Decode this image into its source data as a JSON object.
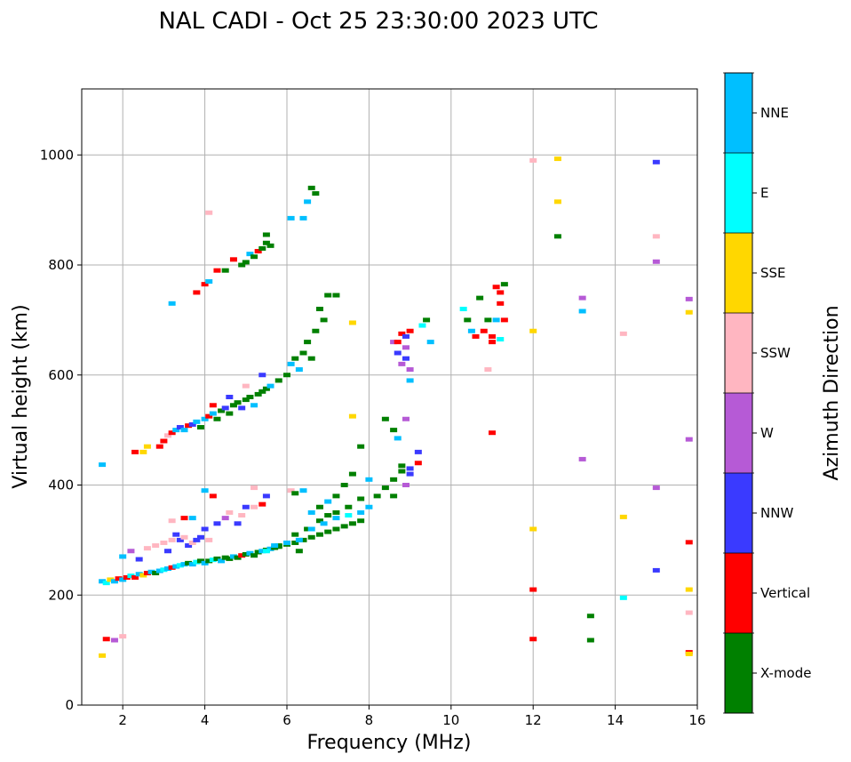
{
  "chart_data": {
    "type": "scatter",
    "title": "NAL CADI - Oct 25 23:30:00 2023 UTC",
    "xlabel": "Frequency (MHz)",
    "ylabel": "Virtual height (km)",
    "xlim": [
      1,
      16
    ],
    "ylim": [
      0,
      1120
    ],
    "xticks": [
      2,
      4,
      6,
      8,
      10,
      12,
      14,
      16
    ],
    "yticks": [
      0,
      200,
      400,
      600,
      800,
      1000
    ],
    "grid": true,
    "colorbar": {
      "label": "Azimuth Direction",
      "categories": [
        "X-mode",
        "Vertical",
        "NNW",
        "W",
        "SSW",
        "SSE",
        "E",
        "NNE"
      ],
      "colors": [
        "#008000",
        "#ff0000",
        "#3a3aff",
        "#b65ad6",
        "#ffb6c1",
        "#ffd700",
        "#00ffff",
        "#00bfff"
      ]
    },
    "points_format": "[frequency_MHz, virtual_height_km, category_index]",
    "points": [
      [
        1.5,
        225,
        7
      ],
      [
        1.6,
        222,
        6
      ],
      [
        1.7,
        228,
        5
      ],
      [
        1.8,
        225,
        7
      ],
      [
        1.9,
        230,
        1
      ],
      [
        2.0,
        228,
        7
      ],
      [
        2.1,
        232,
        1
      ],
      [
        2.2,
        235,
        6
      ],
      [
        2.3,
        232,
        1
      ],
      [
        2.4,
        238,
        7
      ],
      [
        2.5,
        236,
        5
      ],
      [
        2.6,
        240,
        1
      ],
      [
        2.7,
        242,
        7
      ],
      [
        2.8,
        240,
        0
      ],
      [
        2.9,
        244,
        7
      ],
      [
        3.0,
        246,
        6
      ],
      [
        3.1,
        248,
        7
      ],
      [
        3.2,
        250,
        1
      ],
      [
        3.3,
        252,
        7
      ],
      [
        3.4,
        254,
        6
      ],
      [
        3.5,
        256,
        7
      ],
      [
        3.6,
        258,
        0
      ],
      [
        3.7,
        256,
        7
      ],
      [
        3.8,
        260,
        6
      ],
      [
        3.9,
        262,
        0
      ],
      [
        4.0,
        258,
        7
      ],
      [
        4.1,
        262,
        0
      ],
      [
        4.2,
        264,
        6
      ],
      [
        4.3,
        266,
        0
      ],
      [
        4.4,
        262,
        7
      ],
      [
        4.5,
        268,
        0
      ],
      [
        4.6,
        266,
        0
      ],
      [
        4.7,
        270,
        7
      ],
      [
        4.8,
        268,
        0
      ],
      [
        4.9,
        272,
        1
      ],
      [
        5.0,
        274,
        0
      ],
      [
        5.1,
        276,
        7
      ],
      [
        5.2,
        272,
        0
      ],
      [
        5.3,
        278,
        0
      ],
      [
        5.4,
        280,
        7
      ],
      [
        5.5,
        282,
        0
      ],
      [
        5.6,
        284,
        7
      ],
      [
        5.7,
        286,
        0
      ],
      [
        5.8,
        288,
        0
      ],
      [
        2.0,
        270,
        7
      ],
      [
        2.2,
        280,
        3
      ],
      [
        2.4,
        265,
        2
      ],
      [
        2.6,
        285,
        4
      ],
      [
        2.8,
        290,
        4
      ],
      [
        3.0,
        295,
        4
      ],
      [
        3.1,
        280,
        2
      ],
      [
        3.2,
        300,
        4
      ],
      [
        3.3,
        310,
        2
      ],
      [
        3.4,
        300,
        2
      ],
      [
        3.5,
        305,
        4
      ],
      [
        3.6,
        290,
        2
      ],
      [
        3.7,
        295,
        4
      ],
      [
        3.8,
        300,
        2
      ],
      [
        3.9,
        305,
        2
      ],
      [
        4.0,
        320,
        2
      ],
      [
        4.1,
        300,
        4
      ],
      [
        4.3,
        330,
        2
      ],
      [
        4.5,
        340,
        3
      ],
      [
        4.6,
        350,
        4
      ],
      [
        4.8,
        330,
        2
      ],
      [
        4.9,
        345,
        4
      ],
      [
        5.0,
        360,
        2
      ],
      [
        5.2,
        360,
        4
      ],
      [
        5.4,
        365,
        1
      ],
      [
        5.5,
        380,
        2
      ],
      [
        3.2,
        335,
        4
      ],
      [
        3.5,
        340,
        1
      ],
      [
        3.7,
        340,
        7
      ],
      [
        4.0,
        390,
        7
      ],
      [
        4.2,
        380,
        1
      ],
      [
        5.2,
        395,
        4
      ],
      [
        6.1,
        390,
        4
      ],
      [
        5.8,
        290,
        0
      ],
      [
        6.0,
        292,
        0
      ],
      [
        6.2,
        295,
        0
      ],
      [
        6.3,
        280,
        0
      ],
      [
        6.4,
        300,
        0
      ],
      [
        6.6,
        305,
        0
      ],
      [
        6.8,
        310,
        0
      ],
      [
        7.0,
        315,
        0
      ],
      [
        7.2,
        320,
        0
      ],
      [
        7.4,
        325,
        0
      ],
      [
        7.6,
        330,
        0
      ],
      [
        7.8,
        335,
        0
      ],
      [
        6.2,
        310,
        0
      ],
      [
        6.5,
        320,
        0
      ],
      [
        6.8,
        335,
        0
      ],
      [
        7.0,
        345,
        0
      ],
      [
        7.2,
        350,
        0
      ],
      [
        7.5,
        360,
        0
      ],
      [
        7.8,
        375,
        0
      ],
      [
        8.0,
        360,
        7
      ],
      [
        8.2,
        380,
        0
      ],
      [
        8.4,
        395,
        0
      ],
      [
        8.6,
        410,
        0
      ],
      [
        8.8,
        425,
        0
      ],
      [
        9.0,
        430,
        2
      ],
      [
        9.0,
        420,
        2
      ],
      [
        8.9,
        400,
        3
      ],
      [
        8.6,
        380,
        0
      ],
      [
        8.8,
        435,
        0
      ],
      [
        9.2,
        440,
        1
      ],
      [
        9.2,
        460,
        2
      ],
      [
        8.7,
        485,
        7
      ],
      [
        8.6,
        500,
        0
      ],
      [
        8.9,
        520,
        3
      ],
      [
        8.4,
        520,
        0
      ],
      [
        7.8,
        470,
        0
      ],
      [
        7.6,
        420,
        0
      ],
      [
        7.4,
        400,
        0
      ],
      [
        7.2,
        380,
        0
      ],
      [
        7.0,
        370,
        7
      ],
      [
        6.8,
        360,
        0
      ],
      [
        6.6,
        350,
        7
      ],
      [
        6.4,
        390,
        7
      ],
      [
        6.2,
        385,
        0
      ],
      [
        8.0,
        410,
        7
      ],
      [
        7.8,
        350,
        7
      ],
      [
        7.5,
        345,
        6
      ],
      [
        7.2,
        340,
        7
      ],
      [
        6.9,
        330,
        7
      ],
      [
        6.6,
        320,
        7
      ],
      [
        6.3,
        300,
        7
      ],
      [
        6.0,
        295,
        7
      ],
      [
        5.7,
        290,
        7
      ],
      [
        5.5,
        280,
        6
      ],
      [
        3.0,
        480,
        1
      ],
      [
        3.1,
        490,
        4
      ],
      [
        3.2,
        495,
        1
      ],
      [
        3.3,
        500,
        7
      ],
      [
        3.4,
        505,
        2
      ],
      [
        3.5,
        500,
        7
      ],
      [
        3.6,
        508,
        1
      ],
      [
        3.7,
        510,
        2
      ],
      [
        3.8,
        515,
        7
      ],
      [
        3.9,
        505,
        0
      ],
      [
        4.0,
        520,
        7
      ],
      [
        4.1,
        525,
        1
      ],
      [
        4.2,
        530,
        7
      ],
      [
        4.3,
        520,
        0
      ],
      [
        4.4,
        535,
        0
      ],
      [
        4.5,
        540,
        2
      ],
      [
        4.6,
        530,
        0
      ],
      [
        4.7,
        545,
        0
      ],
      [
        4.8,
        550,
        0
      ],
      [
        4.9,
        540,
        2
      ],
      [
        5.0,
        555,
        0
      ],
      [
        5.1,
        560,
        0
      ],
      [
        5.2,
        545,
        7
      ],
      [
        5.3,
        565,
        0
      ],
      [
        5.4,
        570,
        0
      ],
      [
        5.5,
        575,
        0
      ],
      [
        5.6,
        580,
        7
      ],
      [
        5.8,
        590,
        0
      ],
      [
        6.0,
        600,
        0
      ],
      [
        6.1,
        620,
        7
      ],
      [
        6.2,
        630,
        0
      ],
      [
        6.3,
        610,
        7
      ],
      [
        6.4,
        640,
        0
      ],
      [
        6.5,
        660,
        0
      ],
      [
        6.6,
        630,
        0
      ],
      [
        6.7,
        680,
        0
      ],
      [
        6.9,
        700,
        0
      ],
      [
        7.0,
        745,
        0
      ],
      [
        7.2,
        745,
        0
      ],
      [
        6.8,
        720,
        0
      ],
      [
        4.2,
        545,
        1
      ],
      [
        4.6,
        560,
        2
      ],
      [
        5.0,
        580,
        4
      ],
      [
        5.4,
        600,
        2
      ],
      [
        2.9,
        470,
        1
      ],
      [
        2.6,
        470,
        5
      ],
      [
        2.3,
        460,
        1
      ],
      [
        2.5,
        460,
        5
      ],
      [
        3.8,
        750,
        1
      ],
      [
        4.0,
        765,
        1
      ],
      [
        4.1,
        770,
        7
      ],
      [
        4.3,
        790,
        1
      ],
      [
        4.5,
        790,
        0
      ],
      [
        4.7,
        810,
        1
      ],
      [
        4.9,
        800,
        0
      ],
      [
        5.0,
        805,
        0
      ],
      [
        5.1,
        820,
        7
      ],
      [
        5.2,
        815,
        0
      ],
      [
        5.3,
        825,
        1
      ],
      [
        5.4,
        830,
        0
      ],
      [
        5.5,
        840,
        0
      ],
      [
        5.6,
        835,
        0
      ],
      [
        5.5,
        855,
        0
      ],
      [
        8.6,
        660,
        3
      ],
      [
        8.7,
        660,
        1
      ],
      [
        8.8,
        675,
        1
      ],
      [
        8.9,
        670,
        2
      ],
      [
        9.0,
        680,
        1
      ],
      [
        8.9,
        650,
        3
      ],
      [
        8.7,
        640,
        2
      ],
      [
        8.9,
        630,
        2
      ],
      [
        9.0,
        610,
        3
      ],
      [
        8.8,
        620,
        3
      ],
      [
        9.0,
        590,
        7
      ],
      [
        9.4,
        700,
        0
      ],
      [
        9.5,
        660,
        7
      ],
      [
        9.3,
        690,
        6
      ],
      [
        10.3,
        720,
        6
      ],
      [
        10.4,
        700,
        0
      ],
      [
        10.5,
        680,
        7
      ],
      [
        10.6,
        670,
        1
      ],
      [
        10.7,
        740,
        0
      ],
      [
        10.8,
        680,
        1
      ],
      [
        10.9,
        700,
        0
      ],
      [
        11.0,
        670,
        1
      ],
      [
        11.1,
        760,
        1
      ],
      [
        11.2,
        750,
        1
      ],
      [
        11.3,
        765,
        0
      ],
      [
        11.2,
        730,
        1
      ],
      [
        11.3,
        700,
        1
      ],
      [
        11.0,
        660,
        1
      ],
      [
        11.2,
        665,
        6
      ],
      [
        11.1,
        700,
        7
      ],
      [
        11.0,
        495,
        1
      ],
      [
        10.9,
        610,
        4
      ],
      [
        6.6,
        940,
        0
      ],
      [
        6.7,
        930,
        0
      ],
      [
        6.5,
        915,
        7
      ],
      [
        6.1,
        885,
        7
      ],
      [
        6.4,
        885,
        7
      ],
      [
        4.1,
        895,
        4
      ],
      [
        3.2,
        730,
        7
      ],
      [
        1.5,
        437,
        7
      ],
      [
        1.6,
        120,
        1
      ],
      [
        1.8,
        118,
        3
      ],
      [
        1.5,
        90,
        5
      ],
      [
        2.0,
        125,
        4
      ],
      [
        7.6,
        695,
        5
      ],
      [
        7.6,
        525,
        5
      ],
      [
        12.0,
        990,
        4
      ],
      [
        12.0,
        680,
        5
      ],
      [
        12.0,
        320,
        5
      ],
      [
        12.0,
        210,
        1
      ],
      [
        12.0,
        120,
        1
      ],
      [
        12.6,
        993,
        5
      ],
      [
        12.6,
        915,
        5
      ],
      [
        12.6,
        852,
        0
      ],
      [
        13.2,
        740,
        3
      ],
      [
        13.2,
        716,
        7
      ],
      [
        13.2,
        447,
        3
      ],
      [
        13.4,
        162,
        0
      ],
      [
        13.4,
        118,
        0
      ],
      [
        14.2,
        675,
        4
      ],
      [
        14.2,
        342,
        5
      ],
      [
        14.2,
        195,
        6
      ],
      [
        15.0,
        987,
        2
      ],
      [
        15.0,
        852,
        4
      ],
      [
        15.0,
        806,
        3
      ],
      [
        15.0,
        395,
        3
      ],
      [
        15.0,
        245,
        2
      ],
      [
        15.8,
        738,
        3
      ],
      [
        15.8,
        714,
        5
      ],
      [
        15.8,
        483,
        3
      ],
      [
        15.8,
        296,
        1
      ],
      [
        15.8,
        210,
        5
      ],
      [
        15.8,
        168,
        4
      ],
      [
        15.8,
        96,
        1
      ],
      [
        15.8,
        93,
        5
      ]
    ]
  }
}
